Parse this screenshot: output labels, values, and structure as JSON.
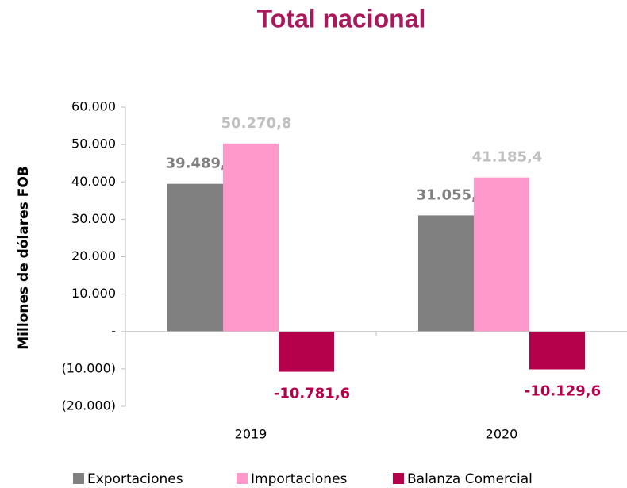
{
  "chart_data": {
    "type": "bar",
    "title": "Total nacional",
    "y_label": "Millones de dólares FOB",
    "categories": [
      "2019",
      "2020"
    ],
    "series": [
      {
        "name": "Exportaciones",
        "color": "#808080",
        "label_color": "#808080",
        "values": [
          39489.2,
          31055.8
        ],
        "value_labels": [
          "39.489,2",
          "31.055,8"
        ]
      },
      {
        "name": "Importaciones",
        "color": "#ff99cc",
        "label_color": "#bfbfbf",
        "values": [
          50270.8,
          41185.4
        ],
        "value_labels": [
          "50.270,8",
          "41.185,4"
        ]
      },
      {
        "name": "Balanza Comercial",
        "color": "#b5004b",
        "label_color": "#b5004b",
        "values": [
          -10781.6,
          -10129.6
        ],
        "value_labels": [
          "-10.781,6",
          "-10.129,6"
        ]
      }
    ],
    "ylim": [
      -20000,
      60000
    ],
    "yticks": [
      {
        "value": -20000,
        "label": "(20.000)"
      },
      {
        "value": -10000,
        "label": "(10.000)"
      },
      {
        "value": 0,
        "label": "-"
      },
      {
        "value": 10000,
        "label": "10.000"
      },
      {
        "value": 20000,
        "label": "20.000"
      },
      {
        "value": 30000,
        "label": "30.000"
      },
      {
        "value": 40000,
        "label": "40.000"
      },
      {
        "value": 50000,
        "label": "50.000"
      },
      {
        "value": 60000,
        "label": "60.000"
      }
    ],
    "grid": false,
    "legend": "bottom"
  }
}
